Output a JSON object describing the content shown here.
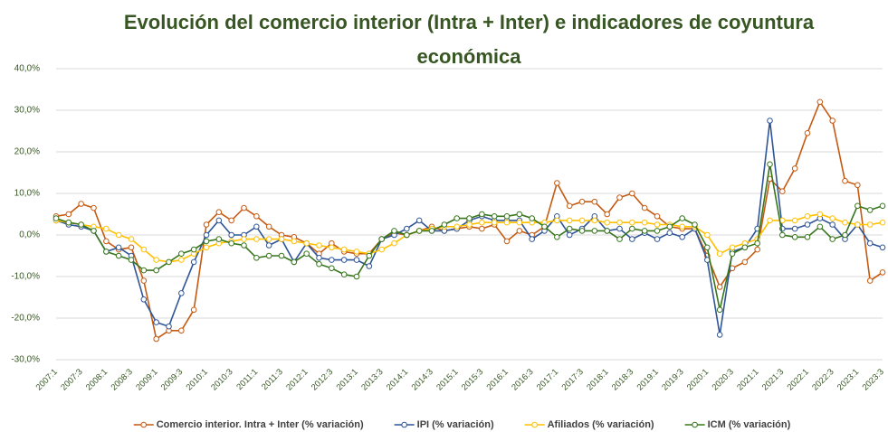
{
  "chart_data": {
    "type": "line",
    "title": "Evolución del comercio interior (Intra + Inter) e indicadores de coyuntura económica",
    "categories": [
      "2007:1",
      null,
      "2007:3",
      null,
      "2008:1",
      null,
      "2008:3",
      null,
      "2009:1",
      null,
      "2009:3",
      null,
      "2010:1",
      null,
      "2010:3",
      null,
      "2011:1",
      null,
      "2011:3",
      null,
      "2012:1",
      null,
      "2012:3",
      null,
      "2013:1",
      null,
      "2013:3",
      null,
      "2014:1",
      null,
      "2014:3",
      null,
      "2015:1",
      null,
      "2015:3",
      null,
      "2016:1",
      null,
      "2016:3",
      null,
      "2017:1",
      null,
      "2017:3",
      null,
      "2018:1",
      null,
      "2018:3",
      null,
      "2019:1",
      null,
      "2019:3",
      null,
      "2020:1",
      null,
      "2020:3",
      null,
      "2021:1",
      null,
      "2021:3",
      null,
      "2022:1",
      null,
      "2022:3",
      null,
      "2023:1",
      null,
      "2023:3"
    ],
    "series": [
      {
        "name": "Comercio interior. Intra + Inter (% variación)",
        "color": "#c55a11",
        "values": [
          4.5,
          5,
          7.5,
          6.5,
          -1.5,
          -3.5,
          -3,
          -11,
          -25,
          -23,
          -23,
          -18,
          2.5,
          5.5,
          3.5,
          6.5,
          4.5,
          2,
          0,
          -0.5,
          -2,
          -4.5,
          -2,
          -4,
          -4.5,
          -4.5,
          -1,
          0.5,
          0,
          1,
          2,
          1,
          1.5,
          2,
          1.5,
          2.5,
          -1.5,
          1,
          0,
          2,
          12.5,
          7,
          8,
          8,
          5,
          9,
          10,
          6.5,
          4.5,
          2,
          1.5,
          1.5,
          -5,
          -12.5,
          -8,
          -6.5,
          -3.5,
          13.5,
          10.5,
          16,
          24.5,
          32,
          27.5,
          13,
          12,
          -11,
          -9
        ]
      },
      {
        "name": "IPI (% variación)",
        "color": "#2f5597",
        "values": [
          3.5,
          2.5,
          2,
          1,
          -4,
          -3,
          -5,
          -15.5,
          -21,
          -22,
          -14,
          -6.5,
          0,
          3.5,
          0,
          0,
          2,
          -2.5,
          -1,
          -6.5,
          -2,
          -5.5,
          -6,
          -6,
          -6,
          -7.5,
          -1,
          0,
          1.5,
          3.5,
          1,
          1,
          1.5,
          3.5,
          4.5,
          3.5,
          3.5,
          3.5,
          -1,
          1,
          4.5,
          0,
          1.5,
          4.5,
          1,
          1.5,
          -1,
          0.5,
          -1,
          0.5,
          -0.5,
          1.5,
          -6,
          -24,
          -4,
          -3,
          1.5,
          27.5,
          1.5,
          1.5,
          2.5,
          4,
          2.5,
          -1,
          2.5,
          -2,
          -3
        ]
      },
      {
        "name": "Afiliados (% variación)",
        "color": "#ffc000",
        "values": [
          3.5,
          3,
          2.5,
          2,
          1.5,
          0,
          -1,
          -3.5,
          -6,
          -6.5,
          -6,
          -4.5,
          -3,
          -2,
          -1.5,
          -1,
          -1,
          -1,
          -1,
          -1.5,
          -2,
          -2.5,
          -3,
          -3.5,
          -4,
          -4.5,
          -3.5,
          -2,
          0,
          1,
          1.5,
          2,
          2,
          2.5,
          3,
          3,
          3,
          3,
          3,
          3,
          3.5,
          3.5,
          3.5,
          3.5,
          3,
          3,
          3,
          3,
          2.5,
          2.5,
          2,
          2,
          0,
          -4.5,
          -3,
          -2,
          -1,
          3.5,
          3.5,
          3.5,
          4.5,
          5,
          4,
          3,
          2.5,
          2.5,
          3
        ]
      },
      {
        "name": "ICM (% variación)",
        "color": "#38761d",
        "values": [
          4,
          3,
          2.5,
          1,
          -4,
          -5,
          -6,
          -8.5,
          -8.5,
          -6.5,
          -4.5,
          -3.5,
          -1.5,
          -1,
          -2,
          -2.5,
          -5.5,
          -5,
          -5,
          -6.5,
          -4.5,
          -7,
          -8,
          -9.5,
          -10,
          -5,
          -1,
          1,
          0,
          1,
          1,
          2.5,
          4,
          4,
          5,
          4.5,
          4.5,
          5,
          4,
          2,
          -0.5,
          1.5,
          1,
          1,
          1,
          -1,
          1.5,
          1,
          1,
          2,
          4,
          2.5,
          -3,
          -18,
          -4.5,
          -3,
          -2,
          17,
          0,
          -0.5,
          -0.5,
          2,
          -1,
          0,
          7,
          6,
          7
        ]
      }
    ],
    "ylim": [
      -30,
      40
    ],
    "yticks": [
      {
        "value": -30,
        "label": "-30,0%"
      },
      {
        "value": -20,
        "label": "-20,0%"
      },
      {
        "value": -10,
        "label": "-10,0%"
      },
      {
        "value": 0,
        "label": "0,0%"
      },
      {
        "value": 10,
        "label": "10,0%"
      },
      {
        "value": 20,
        "label": "20,0%"
      },
      {
        "value": 30,
        "label": "30,0%"
      },
      {
        "value": 40,
        "label": "40,0%"
      }
    ],
    "grid": true,
    "legend": "bottom"
  }
}
